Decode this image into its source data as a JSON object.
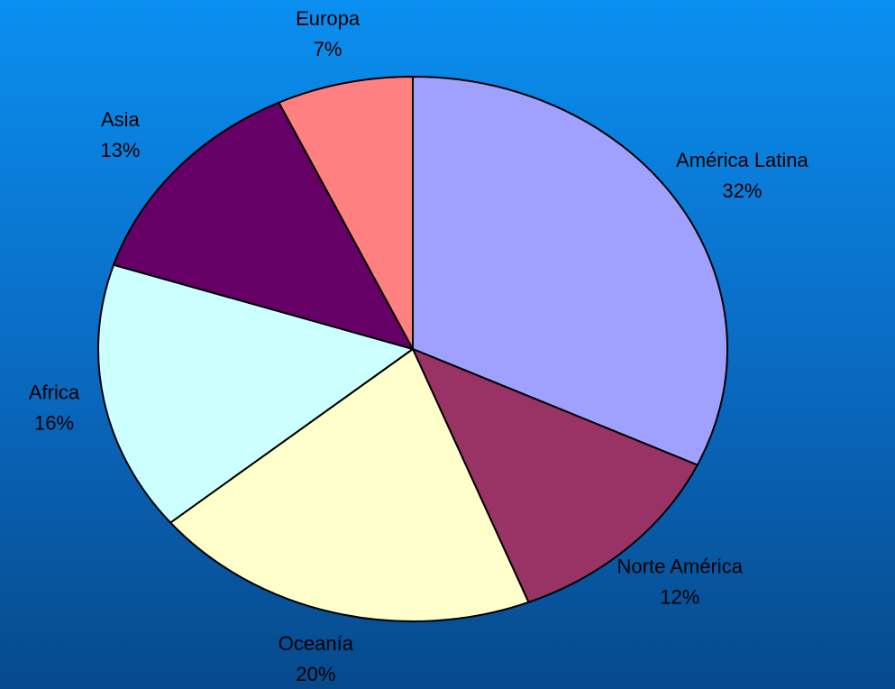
{
  "chart_data": {
    "type": "pie",
    "categories": [
      "América Latina",
      "Norte América",
      "Oceanía",
      "Africa",
      "Asia",
      "Europa"
    ],
    "values": [
      32,
      12,
      20,
      16,
      13,
      7
    ],
    "value_labels": [
      "32%",
      "12%",
      "20%",
      "16%",
      "13%",
      "7%"
    ],
    "colors": [
      "#a0a0ff",
      "#993366",
      "#ffffcc",
      "#ccffff",
      "#660066",
      "#ff8080"
    ]
  }
}
